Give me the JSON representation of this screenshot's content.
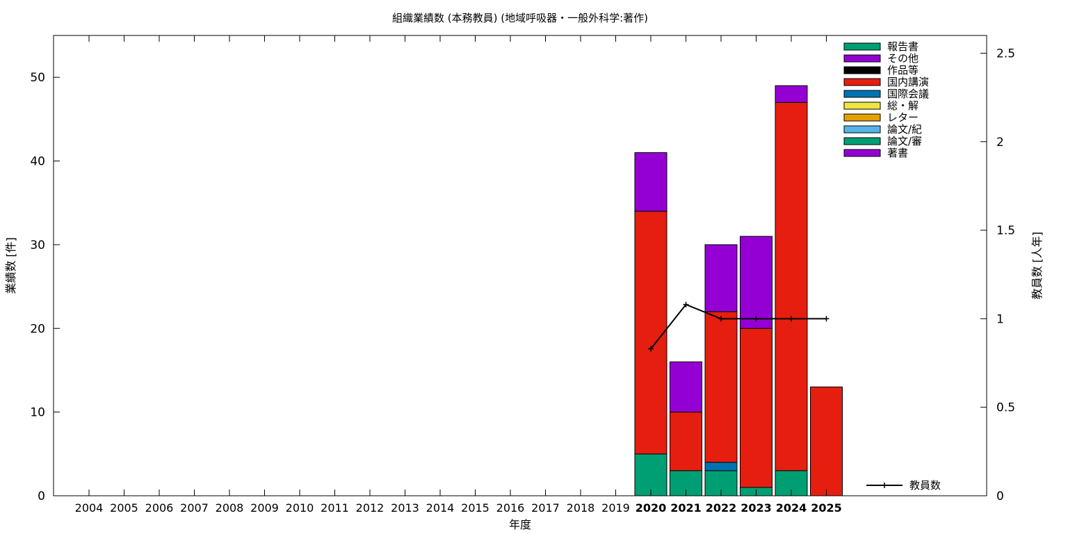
{
  "chart_data": {
    "type": "bar",
    "stacked": true,
    "title": "組織業績数 (本務教員) (地域呼吸器・一般外科学:著作)",
    "xlabel": "年度",
    "ylabel": "業績数 [件]",
    "y2label": "教員数 [人年]",
    "ylim": [
      0,
      55
    ],
    "y2lim": [
      0,
      2.6
    ],
    "yticks": [
      0,
      10,
      20,
      30,
      40,
      50
    ],
    "y2ticks": [
      "0",
      "0.5",
      "1",
      "1.5",
      "2",
      "2.5"
    ],
    "grid": false,
    "legend_position": "top-right",
    "categories": [
      "2004",
      "2005",
      "2006",
      "2007",
      "2008",
      "2009",
      "2010",
      "2011",
      "2012",
      "2013",
      "2014",
      "2015",
      "2016",
      "2017",
      "2018",
      "2019",
      "2020",
      "2021",
      "2022",
      "2023",
      "2024",
      "2025"
    ],
    "bold_categories": [
      "2020",
      "2021",
      "2022",
      "2023",
      "2024",
      "2025"
    ],
    "series": [
      {
        "name": "論文/審",
        "color": "#009e73",
        "values": [
          0,
          0,
          0,
          0,
          0,
          0,
          0,
          0,
          0,
          0,
          0,
          0,
          0,
          0,
          0,
          0,
          5,
          3,
          3,
          1,
          3,
          0
        ]
      },
      {
        "name": "論文/紀",
        "color": "#56b4e9",
        "values": [
          0,
          0,
          0,
          0,
          0,
          0,
          0,
          0,
          0,
          0,
          0,
          0,
          0,
          0,
          0,
          0,
          0,
          0,
          0,
          0,
          0,
          0
        ]
      },
      {
        "name": "レター",
        "color": "#e69f00",
        "values": [
          0,
          0,
          0,
          0,
          0,
          0,
          0,
          0,
          0,
          0,
          0,
          0,
          0,
          0,
          0,
          0,
          0,
          0,
          0,
          0,
          0,
          0
        ]
      },
      {
        "name": "総・解",
        "color": "#f0e442",
        "values": [
          0,
          0,
          0,
          0,
          0,
          0,
          0,
          0,
          0,
          0,
          0,
          0,
          0,
          0,
          0,
          0,
          0,
          0,
          0,
          0,
          0,
          0
        ]
      },
      {
        "name": "国際会議",
        "color": "#0072b2",
        "values": [
          0,
          0,
          0,
          0,
          0,
          0,
          0,
          0,
          0,
          0,
          0,
          0,
          0,
          0,
          0,
          0,
          0,
          0,
          1,
          0,
          0,
          0
        ]
      },
      {
        "name": "国内講演",
        "color": "#e51e10",
        "values": [
          0,
          0,
          0,
          0,
          0,
          0,
          0,
          0,
          0,
          0,
          0,
          0,
          0,
          0,
          0,
          0,
          29,
          7,
          18,
          19,
          44,
          13
        ]
      },
      {
        "name": "作品等",
        "color": "#000000",
        "values": [
          0,
          0,
          0,
          0,
          0,
          0,
          0,
          0,
          0,
          0,
          0,
          0,
          0,
          0,
          0,
          0,
          0,
          0,
          0,
          0,
          0,
          0
        ]
      },
      {
        "name": "その他",
        "color": "#9400d3",
        "values": [
          0,
          0,
          0,
          0,
          0,
          0,
          0,
          0,
          0,
          0,
          0,
          0,
          0,
          0,
          0,
          0,
          7,
          6,
          8,
          11,
          2,
          0
        ]
      }
    ],
    "legend": [
      {
        "name": "報告書",
        "color": "#009e73"
      },
      {
        "name": "その他",
        "color": "#9400d3"
      },
      {
        "name": "作品等",
        "color": "#000000"
      },
      {
        "name": "国内講演",
        "color": "#e51e10"
      },
      {
        "name": "国際会議",
        "color": "#0072b2"
      },
      {
        "name": "総・解",
        "color": "#f0e442"
      },
      {
        "name": "レター",
        "color": "#e69f00"
      },
      {
        "name": "論文/紀",
        "color": "#56b4e9"
      },
      {
        "name": "論文/審",
        "color": "#009e73"
      },
      {
        "name": "著書",
        "color": "#9400d3"
      }
    ],
    "line_series": {
      "name": "教員数",
      "axis": "y2",
      "color": "#000000",
      "x": [
        "2020",
        "2021",
        "2022",
        "2023",
        "2024",
        "2025"
      ],
      "values": [
        0.83,
        1.08,
        1.0,
        1.0,
        1.0,
        1.0
      ]
    }
  }
}
